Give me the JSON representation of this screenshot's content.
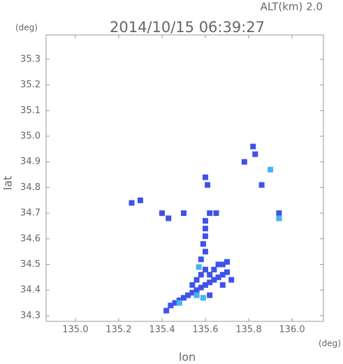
{
  "chart_data": {
    "type": "scatter",
    "title": "2014/10/15 06:39:27",
    "subtitle": "ALT(km) 2.0",
    "x_label": "lon",
    "y_label": "lat",
    "x_unit": "(deg)",
    "y_unit": "(deg)",
    "xlim": [
      134.865,
      136.145
    ],
    "ylim": [
      34.278,
      35.395
    ],
    "xticks": [
      {
        "value": 135,
        "label": "135.0"
      },
      135.2,
      135.4,
      135.6,
      135.8,
      {
        "value": 136,
        "label": "136.0"
      }
    ],
    "yticks": [
      34.3,
      34.4,
      34.5,
      34.6,
      34.7,
      34.8,
      34.9,
      {
        "value": 35,
        "label": "35.0"
      },
      35.1,
      35.2,
      35.3
    ],
    "series": [
      {
        "color": "#3f52ea",
        "x": [
          135.42,
          135.44,
          135.46,
          135.48,
          135.5,
          135.52,
          135.54,
          135.56,
          135.58,
          135.6,
          135.62,
          135.64,
          135.66,
          135.68,
          135.7,
          135.56,
          135.58,
          135.6,
          135.62,
          135.64,
          135.66,
          135.68,
          135.7,
          135.54,
          135.58,
          135.6,
          135.59,
          135.6,
          135.6,
          135.6,
          135.62,
          135.65,
          135.5,
          135.43,
          135.4,
          135.26,
          135.3,
          135.6,
          135.61,
          135.82,
          135.83,
          135.78,
          135.86,
          135.94,
          135.94,
          135.56,
          135.68,
          135.72,
          135.62
        ],
        "y": [
          34.32,
          34.34,
          34.35,
          34.36,
          34.37,
          34.38,
          34.39,
          34.4,
          34.41,
          34.42,
          34.43,
          34.44,
          34.45,
          34.46,
          34.47,
          34.44,
          34.46,
          34.48,
          34.46,
          34.48,
          34.5,
          34.5,
          34.51,
          34.42,
          34.52,
          34.55,
          34.58,
          34.61,
          34.64,
          34.67,
          34.7,
          34.7,
          34.7,
          34.68,
          34.7,
          34.74,
          34.75,
          34.84,
          34.81,
          34.96,
          34.93,
          34.9,
          34.81,
          34.7,
          34.68,
          34.38,
          34.42,
          34.44,
          34.38
        ]
      },
      {
        "color": "#46b4f0",
        "x": [
          135.56,
          135.59,
          135.48,
          135.9,
          135.94,
          135.57
        ],
        "y": [
          34.38,
          34.37,
          34.35,
          34.87,
          34.68,
          34.49
        ]
      }
    ]
  }
}
